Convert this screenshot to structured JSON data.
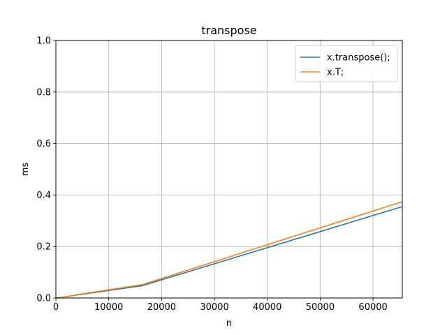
{
  "chart_data": {
    "type": "line",
    "title": "transpose",
    "xlabel": "n",
    "ylabel": "ms",
    "xlim": [
      0,
      65536
    ],
    "ylim": [
      0,
      1.0
    ],
    "xticks": [
      0,
      10000,
      20000,
      30000,
      40000,
      50000,
      60000
    ],
    "xtick_labels": [
      "0",
      "10000",
      "20000",
      "30000",
      "40000",
      "50000",
      "60000"
    ],
    "yticks": [
      0,
      0.2,
      0.4,
      0.6,
      0.8,
      1.0
    ],
    "ytick_labels": [
      "0.0",
      "0.2",
      "0.4",
      "0.6",
      "0.8",
      "1.0"
    ],
    "grid": true,
    "legend_position": "top-right",
    "series": [
      {
        "name": "x.transpose();",
        "color": "#1f77b4",
        "x": [
          1,
          1024,
          4096,
          16384,
          65536
        ],
        "y": [
          0.0,
          0.002,
          0.012,
          0.048,
          0.355
        ]
      },
      {
        "name": "x.T;",
        "color": "#ff7f0e",
        "x": [
          1,
          1024,
          4096,
          16384,
          65536
        ],
        "y": [
          0.0,
          0.002,
          0.013,
          0.052,
          0.374
        ]
      }
    ]
  }
}
